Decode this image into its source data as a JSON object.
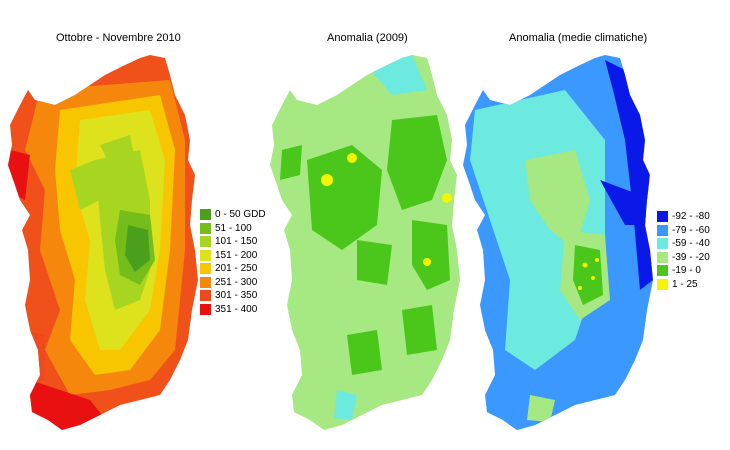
{
  "titles": {
    "gdd": "Ottobre - Novembre 2010",
    "anomaly_2009": "Anomalia (2009)",
    "anomaly_climate": "Anomalia (medie climatiche)"
  },
  "legend_gdd": [
    {
      "label": "0 - 50 GDD",
      "color": "#4aa01c"
    },
    {
      "label": "51 - 100",
      "color": "#74bd1a"
    },
    {
      "label": "101 - 150",
      "color": "#a8d520"
    },
    {
      "label": "151 - 200",
      "color": "#dde21c"
    },
    {
      "label": "201 - 250",
      "color": "#f7c600"
    },
    {
      "label": "251 - 300",
      "color": "#f5870a"
    },
    {
      "label": "301 - 350",
      "color": "#f04a1c"
    },
    {
      "label": "351 - 400",
      "color": "#e81010"
    }
  ],
  "legend_anomaly": [
    {
      "label": "-92 - -80",
      "color": "#0a18e8"
    },
    {
      "label": "-79 - -60",
      "color": "#3a98ff"
    },
    {
      "label": "-59 - -40",
      "color": "#6ceae0"
    },
    {
      "label": "-39 - -20",
      "color": "#a6e882"
    },
    {
      "label": "-19 - 0",
      "color": "#4ac71a"
    },
    {
      "label": "1 - 25",
      "color": "#f5f500"
    }
  ]
}
